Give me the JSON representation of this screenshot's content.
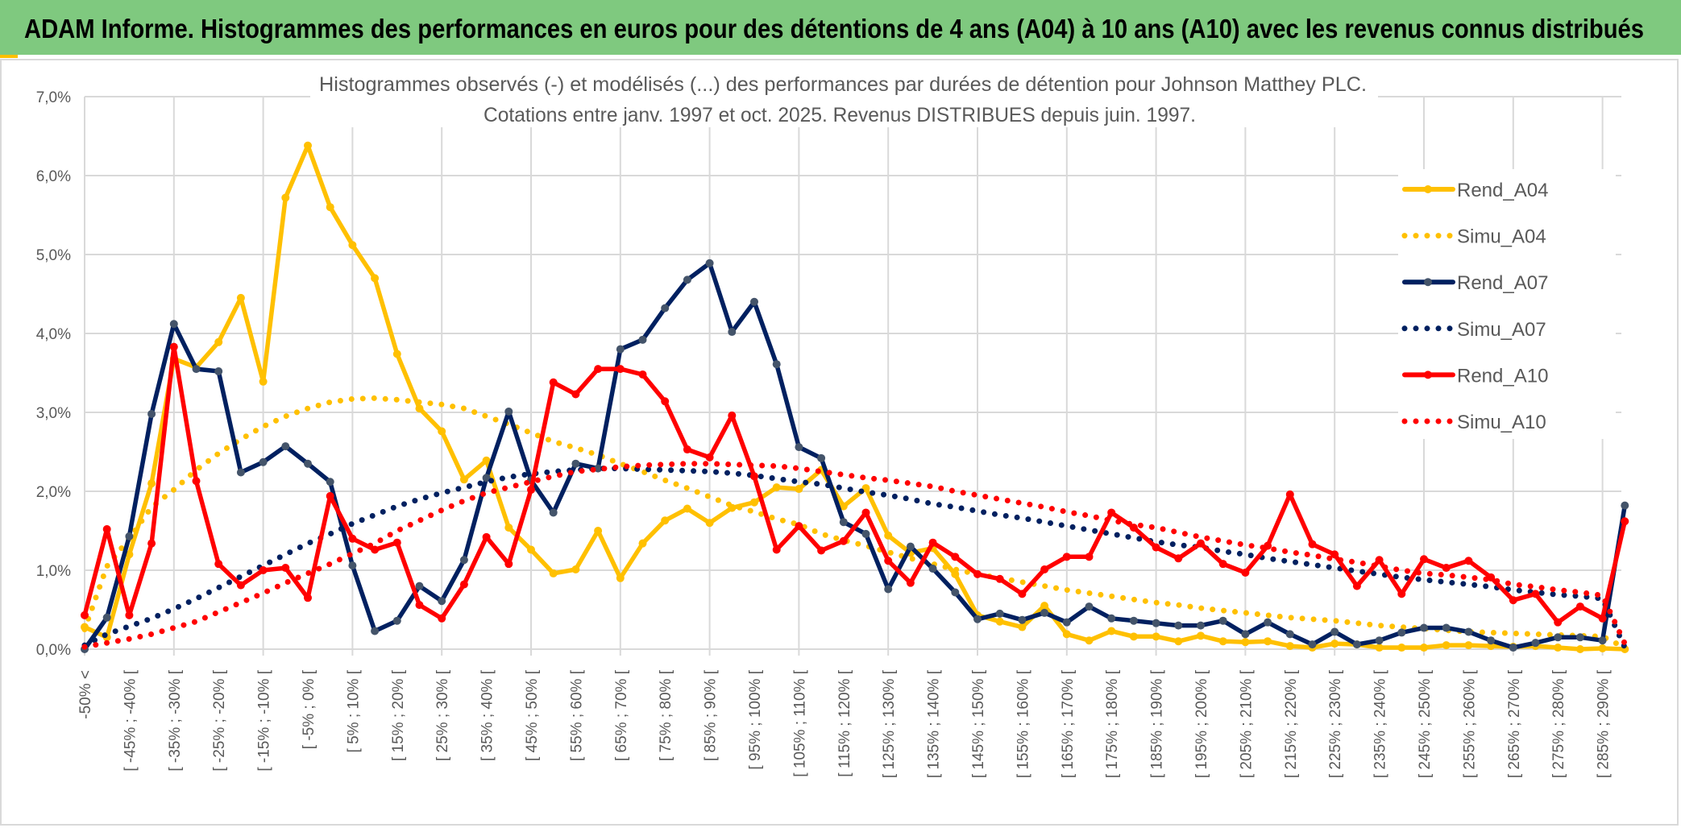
{
  "header": {
    "title": "ADAM Informe. Histogrammes des performances en euros pour des détentions de 4 ans (A04) à 10 ans (A10) avec les revenus connus distribués",
    "background": "#7FC97F"
  },
  "chart_data": {
    "type": "line",
    "title": "Histogrammes observés (-) et modélisés (...) des performances par durées de détention pour Johnson Matthey PLC.",
    "subtitle": "Cotations entre janv. 1997 et oct. 2025. Revenus DISTRIBUES depuis juin. 1997.",
    "xlabel": "",
    "ylabel": "",
    "ylim": [
      0,
      7
    ],
    "y_ticks": [
      "0,0%",
      "1,0%",
      "2,0%",
      "3,0%",
      "4,0%",
      "5,0%",
      "6,0%",
      "7,0%"
    ],
    "x_tick_labels_every_other": [
      "-50% <",
      "[ -45% ; -40% [",
      "[ -35% ; -30% [",
      "[ -25% ; -20% [",
      "[ -15% ; -10% [",
      "[ -5% ; 0% [",
      "[ 5% ; 10% [",
      "[ 15% ; 20% [",
      "[ 25% ; 30% [",
      "[ 35% ; 40% [",
      "[ 45% ; 50% [",
      "[ 55% ; 60% [",
      "[ 65% ; 70% [",
      "[ 75% ; 80% [",
      "[ 85% ; 90% [",
      "[ 95% ; 100% [",
      "[ 105% ; 110% [",
      "[ 115% ; 120% [",
      "[ 125% ; 130% [",
      "[ 135% ; 140% [",
      "[ 145% ; 150% [",
      "[ 155% ; 160% [",
      "[ 165% ; 170% [",
      "[ 175% ; 180% [",
      "[ 185% ; 190% [",
      "[ 195% ; 200% [",
      "[ 205% ; 210% [",
      "[ 215% ; 220% [",
      "[ 225% ; 230% [",
      "[ 235% ; 240% [",
      "[ 245% ; 250% [",
      "[ 255% ; 260% [",
      "[ 265% ; 270% [",
      "[ 275% ; 280% [",
      "[ 285% ; 290% ["
    ],
    "grid": true,
    "legend_position": "right",
    "value_unit": "%",
    "series": [
      {
        "name": "Rend_A04",
        "style": "solid-markers",
        "color": "#FFC000",
        "values": [
          0.28,
          0.15,
          1.2,
          2.1,
          3.68,
          3.57,
          3.89,
          4.45,
          3.39,
          5.72,
          6.38,
          5.6,
          5.12,
          4.7,
          3.74,
          3.05,
          2.76,
          2.15,
          2.39,
          1.54,
          1.26,
          0.96,
          1.01,
          1.5,
          0.9,
          1.34,
          1.63,
          1.78,
          1.6,
          1.79,
          1.86,
          2.05,
          2.03,
          2.27,
          1.81,
          2.04,
          1.44,
          1.22,
          1.28,
          0.95,
          0.43,
          0.35,
          0.28,
          0.55,
          0.19,
          0.11,
          0.23,
          0.16,
          0.16,
          0.1,
          0.17,
          0.1,
          0.09,
          0.1,
          0.04,
          0.02,
          0.07,
          0.06,
          0.02,
          0.02,
          0.02,
          0.05,
          0.05,
          0.04,
          0.03,
          0.04,
          0.02,
          0.0,
          0.01,
          0.0
        ]
      },
      {
        "name": "Simu_A04",
        "style": "dotted",
        "color": "#FFC000",
        "values": [
          0.25,
          1.05,
          1.4,
          1.8,
          2.02,
          2.27,
          2.48,
          2.66,
          2.82,
          2.95,
          3.05,
          3.13,
          3.17,
          3.18,
          3.16,
          3.13,
          3.1,
          3.05,
          2.95,
          2.85,
          2.74,
          2.63,
          2.55,
          2.46,
          2.35,
          2.25,
          2.14,
          2.04,
          1.93,
          1.82,
          1.74,
          1.65,
          1.58,
          1.46,
          1.38,
          1.31,
          1.23,
          1.15,
          1.08,
          1.01,
          0.95,
          0.9,
          0.85,
          0.8,
          0.75,
          0.71,
          0.67,
          0.63,
          0.59,
          0.56,
          0.52,
          0.49,
          0.46,
          0.43,
          0.4,
          0.38,
          0.36,
          0.33,
          0.3,
          0.28,
          0.26,
          0.24,
          0.22,
          0.21,
          0.2,
          0.19,
          0.18,
          0.17,
          0.16,
          0.02
        ]
      },
      {
        "name": "Rend_A07",
        "style": "solid-markers",
        "color": "#002060",
        "marker": "#44546A",
        "values": [
          0.0,
          0.4,
          1.43,
          2.98,
          4.12,
          3.55,
          3.52,
          2.24,
          2.37,
          2.57,
          2.35,
          2.12,
          1.06,
          0.23,
          0.36,
          0.8,
          0.61,
          1.13,
          2.17,
          3.01,
          2.14,
          1.73,
          2.35,
          2.29,
          3.8,
          3.92,
          4.32,
          4.68,
          4.89,
          4.02,
          4.4,
          3.61,
          2.56,
          2.42,
          1.61,
          1.46,
          0.76,
          1.3,
          1.02,
          0.72,
          0.38,
          0.45,
          0.37,
          0.46,
          0.34,
          0.54,
          0.39,
          0.36,
          0.33,
          0.3,
          0.3,
          0.36,
          0.19,
          0.34,
          0.19,
          0.06,
          0.22,
          0.06,
          0.11,
          0.21,
          0.27,
          0.27,
          0.22,
          0.11,
          0.02,
          0.08,
          0.15,
          0.15,
          0.11,
          1.82
        ]
      },
      {
        "name": "Simu_A07",
        "style": "dotted",
        "color": "#002060",
        "values": [
          0.05,
          0.19,
          0.29,
          0.39,
          0.51,
          0.64,
          0.78,
          0.92,
          1.06,
          1.2,
          1.34,
          1.46,
          1.59,
          1.7,
          1.81,
          1.9,
          1.98,
          2.05,
          2.12,
          2.18,
          2.22,
          2.25,
          2.27,
          2.29,
          2.29,
          2.28,
          2.27,
          2.26,
          2.25,
          2.23,
          2.2,
          2.16,
          2.12,
          2.09,
          2.04,
          1.99,
          1.95,
          1.9,
          1.84,
          1.8,
          1.75,
          1.7,
          1.66,
          1.61,
          1.56,
          1.51,
          1.46,
          1.41,
          1.36,
          1.32,
          1.29,
          1.24,
          1.2,
          1.15,
          1.11,
          1.07,
          1.03,
          0.99,
          0.95,
          0.91,
          0.88,
          0.85,
          0.82,
          0.79,
          0.75,
          0.72,
          0.69,
          0.67,
          0.64,
          0.02
        ]
      },
      {
        "name": "Rend_A10",
        "style": "solid-markers",
        "color": "#FF0000",
        "values": [
          0.43,
          1.52,
          0.43,
          1.34,
          3.83,
          2.13,
          1.08,
          0.81,
          1.0,
          1.03,
          0.65,
          1.94,
          1.4,
          1.26,
          1.35,
          0.56,
          0.39,
          0.82,
          1.42,
          1.08,
          2.02,
          3.38,
          3.23,
          3.55,
          3.55,
          3.48,
          3.14,
          2.53,
          2.43,
          2.96,
          2.19,
          1.26,
          1.56,
          1.25,
          1.37,
          1.73,
          1.12,
          0.84,
          1.35,
          1.17,
          0.95,
          0.89,
          0.7,
          1.01,
          1.17,
          1.17,
          1.73,
          1.54,
          1.29,
          1.15,
          1.34,
          1.08,
          0.97,
          1.31,
          1.96,
          1.33,
          1.2,
          0.8,
          1.13,
          0.7,
          1.14,
          1.03,
          1.12,
          0.91,
          0.62,
          0.7,
          0.34,
          0.54,
          0.39,
          1.62
        ]
      },
      {
        "name": "Simu_A10",
        "style": "dotted",
        "color": "#FF0000",
        "values": [
          0.03,
          0.08,
          0.13,
          0.19,
          0.27,
          0.35,
          0.47,
          0.59,
          0.71,
          0.84,
          0.96,
          1.08,
          1.21,
          1.34,
          1.5,
          1.63,
          1.76,
          1.88,
          1.98,
          2.05,
          2.12,
          2.19,
          2.25,
          2.28,
          2.31,
          2.33,
          2.34,
          2.35,
          2.35,
          2.34,
          2.33,
          2.32,
          2.29,
          2.25,
          2.21,
          2.17,
          2.14,
          2.1,
          2.06,
          2.0,
          1.95,
          1.9,
          1.85,
          1.8,
          1.74,
          1.69,
          1.63,
          1.58,
          1.54,
          1.48,
          1.42,
          1.37,
          1.32,
          1.28,
          1.23,
          1.19,
          1.14,
          1.1,
          1.05,
          1.0,
          0.96,
          0.94,
          0.91,
          0.88,
          0.82,
          0.79,
          0.75,
          0.72,
          0.68,
          0.07
        ]
      }
    ]
  }
}
